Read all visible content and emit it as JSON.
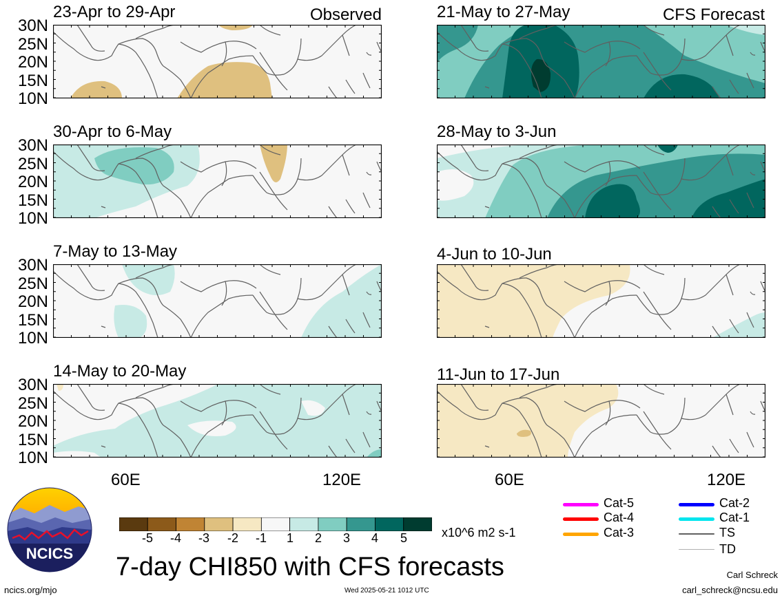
{
  "colors": {
    "neutral": "#f7f7f7",
    "coast": "#606060",
    "levels": [
      "#5a3a0f",
      "#8c5a1a",
      "#c08434",
      "#dfc07f",
      "#f6e8c3",
      "#f7f7f7",
      "#c7eae5",
      "#80cdc1",
      "#35978f",
      "#01665e",
      "#003c30"
    ]
  },
  "observed_label": "Observed",
  "forecast_label": "CFS Forecast",
  "lat_labels": [
    "30N",
    "25N",
    "20N",
    "15N",
    "10N"
  ],
  "lon_labels": [
    "60E",
    "120E"
  ],
  "panels": [
    {
      "title": "23-Apr to 29-Apr",
      "column": "observed",
      "tag": "Observed"
    },
    {
      "title": "21-May to 27-May",
      "column": "forecast",
      "tag": "CFS Forecast"
    },
    {
      "title": "30-Apr to 6-May",
      "column": "observed"
    },
    {
      "title": "28-May to 3-Jun",
      "column": "forecast"
    },
    {
      "title": "7-May to 13-May",
      "column": "observed"
    },
    {
      "title": "4-Jun to 10-Jun",
      "column": "forecast"
    },
    {
      "title": "14-May to 20-May",
      "column": "observed"
    },
    {
      "title": "11-Jun to 17-Jun",
      "column": "forecast"
    }
  ],
  "colorbar": {
    "ticks": [
      "-5",
      "-4",
      "-3",
      "-2",
      "-1",
      "1",
      "2",
      "3",
      "4",
      "5"
    ],
    "units": "x10^6 m2 s-1"
  },
  "legend": [
    {
      "label": "Cat-5",
      "color": "#ff00ff"
    },
    {
      "label": "Cat-4",
      "color": "#ff0000"
    },
    {
      "label": "Cat-3",
      "color": "#ffa500"
    },
    {
      "label": "Cat-2",
      "color": "#0000ff"
    },
    {
      "label": "Cat-1",
      "color": "#00e5ee"
    },
    {
      "label": "TS",
      "color": "#606060"
    },
    {
      "label": "TD",
      "color": "#b0b0b0"
    }
  ],
  "logo_text": "NCICS",
  "main_title": "7-day CHI850 with CFS forecasts",
  "author": "Carl Schreck",
  "email": "carl_schreck@ncsu.edu",
  "site": "ncics.org/mjo",
  "timestamp": "Wed 2025-05-21 1012 UTC"
}
